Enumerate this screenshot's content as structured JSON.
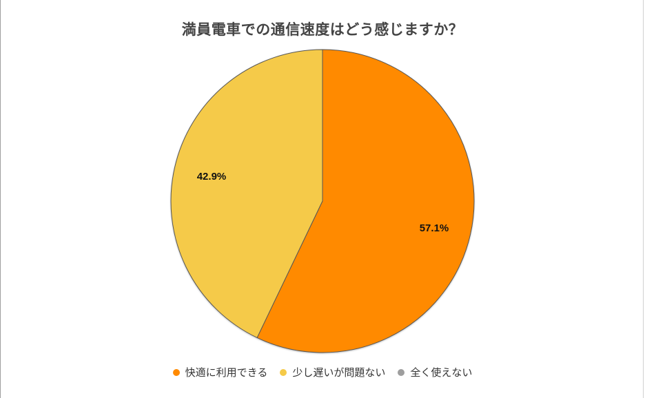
{
  "chart_data": {
    "type": "pie",
    "title": "満員電車での通信速度はどう感じますか？",
    "categories": [
      "快適に利用できる",
      "少し遅いが問題ない",
      "全く使えない"
    ],
    "values": [
      57.1,
      42.9,
      0.0
    ],
    "labels": [
      "57.1%",
      "42.9%",
      ""
    ],
    "colors": [
      "#FF8A00",
      "#F5CA48",
      "#9E9E9E"
    ],
    "start_angle": "12 o'clock, clockwise",
    "legend_position": "bottom"
  },
  "title": "満員電車での通信速度はどう感じますか？",
  "slices": [
    {
      "label": "57.1%",
      "color": "#FF8A00"
    },
    {
      "label": "42.9%",
      "color": "#F5CA48"
    }
  ],
  "legend": [
    {
      "label": "快適に利用できる",
      "color": "#FF8A00"
    },
    {
      "label": "少し遅いが問題ない",
      "color": "#F5CA48"
    },
    {
      "label": "全く使えない",
      "color": "#9E9E9E"
    }
  ]
}
